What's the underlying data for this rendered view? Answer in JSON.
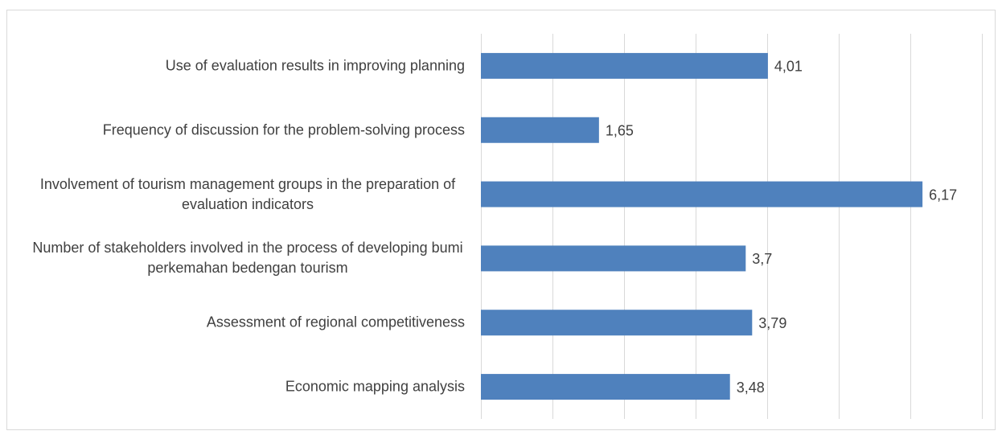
{
  "chart_data": {
    "type": "barh",
    "categories": [
      "Use of evaluation results in improving planning",
      "Frequency of discussion for the problem-solving process",
      "Involvement of tourism management groups in the preparation of evaluation indicators",
      "Number of stakeholders involved in the process of developing bumi perkemahan bedengan tourism",
      "Assessment of regional competitiveness",
      "Economic mapping analysis"
    ],
    "values": [
      4.01,
      1.65,
      6.17,
      3.7,
      3.79,
      3.48
    ],
    "value_labels": [
      "4,01",
      "1,65",
      "6,17",
      "3,7",
      "3,79",
      "3,48"
    ],
    "color": "#4f81bd",
    "xlim": [
      0,
      7
    ],
    "xticks": [
      0,
      1,
      2,
      3,
      4,
      5,
      6,
      7
    ],
    "grid": true
  }
}
